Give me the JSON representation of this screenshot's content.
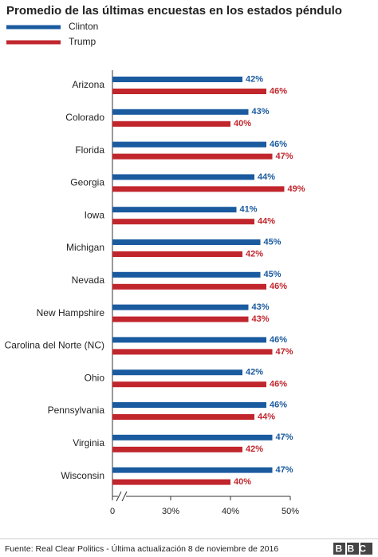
{
  "chart_data": {
    "type": "bar",
    "orientation": "horizontal",
    "title": "Promedio de las últimas encuestas en los estados péndulo",
    "categories": [
      "Arizona",
      "Colorado",
      "Florida",
      "Georgia",
      "Iowa",
      "Michigan",
      "Nevada",
      "New Hampshire",
      "Carolina del Norte (NC)",
      "Ohio",
      "Pennsylvania",
      "Virginia",
      "Wisconsin"
    ],
    "series": [
      {
        "name": "Clinton",
        "color": "#1a5a9f",
        "values": [
          42,
          43,
          46,
          44,
          41,
          45,
          45,
          43,
          46,
          42,
          46,
          47,
          47
        ],
        "value_labels": [
          "42%",
          "43%",
          "46%",
          "44%",
          "41%",
          "45%",
          "45%",
          "43%",
          "46%",
          "42%",
          "46%",
          "47%",
          "47%"
        ]
      },
      {
        "name": "Trump",
        "color": "#c1262d",
        "values": [
          46,
          40,
          47,
          49,
          44,
          42,
          46,
          43,
          47,
          46,
          44,
          42,
          40
        ],
        "value_labels": [
          "46%",
          "40%",
          "47%",
          "49%",
          "44%",
          "42%",
          "46%",
          "43%",
          "47%",
          "46%",
          "44%",
          "42%",
          "40%"
        ]
      }
    ],
    "xlim": [
      0,
      50
    ],
    "xticks": [
      0,
      {
        "value": 30,
        "label": "30%"
      },
      {
        "value": 40,
        "label": "40%"
      },
      {
        "value": 50,
        "label": "50%"
      }
    ],
    "axis_break": [
      0,
      30
    ],
    "source": "Fuente: Real Clear Politics - Última actualización 8 de noviembre de 2016",
    "logo": "BBC"
  }
}
